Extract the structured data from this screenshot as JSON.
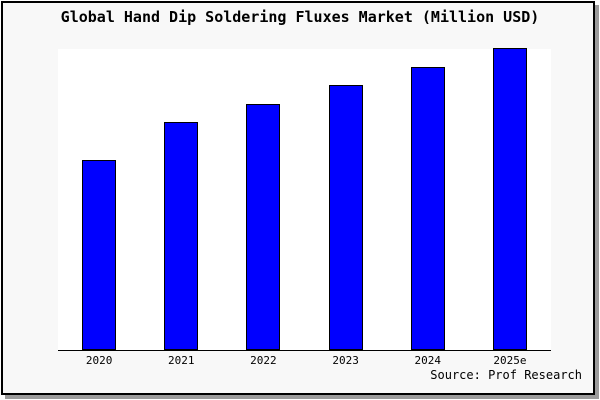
{
  "window": {
    "background_color": "#f8f8f8",
    "outside_color": "#ffffff",
    "border_color": "#000000",
    "shadow_color": "#9b9b9b"
  },
  "chart": {
    "title": "Global Hand Dip Soldering Fluxes Market (Million USD)",
    "source": "Source: Prof Research",
    "bar_color": "#0000ff",
    "bar_border_color": "#000000",
    "plot_background": "#ffffff",
    "axis_color": "#000000"
  },
  "chart_data": {
    "type": "bar",
    "title": "Global Hand Dip Soldering Fluxes Market (Million USD)",
    "categories": [
      "2020",
      "2021",
      "2022",
      "2023",
      "2024",
      "2025e"
    ],
    "values": [
      62.7,
      75.2,
      81.5,
      87.8,
      93.8,
      100
    ],
    "units": "relative index (no y-axis tick labels shown in chart; 2025e bar = 100)",
    "xlabel": "",
    "ylabel": "",
    "ylim": [
      0,
      100
    ],
    "grid": false,
    "legend": false,
    "annotations": [
      "Source: Prof Research"
    ]
  }
}
